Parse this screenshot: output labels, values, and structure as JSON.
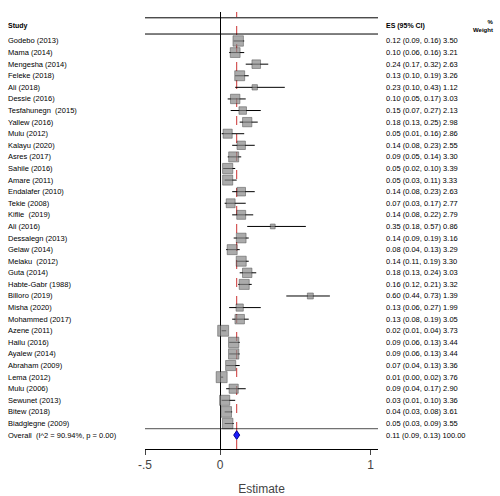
{
  "chart_data": {
    "type": "forest",
    "xlabel": "Estimate",
    "categories": [
      "Godebo (2013)",
      "Mama (2014)",
      "Mengesha (2014)",
      "Feleke (2018)",
      "Ali (2018)",
      "Dessie (2016)",
      "Tesfahunegn  (2015)",
      "Yallew (2016)",
      "Mulu (2012)",
      "Kalayu (2020)",
      "Asres (2017)",
      "Sahile (2016)",
      "Amare (2011)",
      "Endalafer (2010)",
      "Tekie (2008)",
      "Kiflie  (2019)",
      "Ali (2016)",
      "Dessalegn (2013)",
      "Gelaw (2014)",
      "Melaku  (2012)",
      "Guta (2014)",
      "Habte-Gabr (1988)",
      "Billoro (2019)",
      "Misha (2020)",
      "Mohammed (2017)",
      "Azene (2011)",
      "Hailu (2016)",
      "Ayalew (2014)",
      "Abraham (2009)",
      "Lema (2012)",
      "Mulu (2006)",
      "Sewunet (2013)",
      "Bitew (2018)",
      "Biadglegne (2009)"
    ],
    "values": [
      0.12,
      0.1,
      0.24,
      0.13,
      0.23,
      0.1,
      0.15,
      0.18,
      0.05,
      0.14,
      0.09,
      0.05,
      0.05,
      0.14,
      0.07,
      0.14,
      0.35,
      0.14,
      0.08,
      0.14,
      0.18,
      0.16,
      0.6,
      0.13,
      0.13,
      0.02,
      0.09,
      0.09,
      0.07,
      0.01,
      0.09,
      0.03,
      0.04,
      0.05
    ],
    "lower": [
      0.09,
      0.06,
      0.17,
      0.1,
      0.1,
      0.05,
      0.07,
      0.13,
      0.01,
      0.08,
      0.05,
      0.02,
      0.03,
      0.08,
      0.03,
      0.08,
      0.18,
      0.09,
      0.04,
      0.11,
      0.13,
      0.12,
      0.44,
      0.06,
      0.08,
      0.01,
      0.06,
      0.06,
      0.04,
      0.0,
      0.04,
      0.01,
      0.03,
      0.03
    ],
    "upper": [
      0.16,
      0.16,
      0.32,
      0.19,
      0.43,
      0.17,
      0.27,
      0.25,
      0.16,
      0.23,
      0.14,
      0.1,
      0.11,
      0.23,
      0.17,
      0.22,
      0.57,
      0.19,
      0.13,
      0.19,
      0.24,
      0.21,
      0.73,
      0.27,
      0.19,
      0.04,
      0.13,
      0.13,
      0.13,
      0.02,
      0.17,
      0.1,
      0.08,
      0.09
    ],
    "weights": [
      3.5,
      3.21,
      2.63,
      3.26,
      1.12,
      3.03,
      2.13,
      2.98,
      2.86,
      2.55,
      3.3,
      3.39,
      3.33,
      2.63,
      2.77,
      2.79,
      0.86,
      3.16,
      3.29,
      3.3,
      3.03,
      3.32,
      1.39,
      1.99,
      3.05,
      3.73,
      3.44,
      3.44,
      3.36,
      3.76,
      2.9,
      3.36,
      3.61,
      3.55
    ],
    "value_labels": [
      "0.12 (0.09, 0.16) 3.50",
      "0.10 (0.06, 0.16) 3.21",
      "0.24 (0.17, 0.32) 2.63",
      "0.13 (0.10, 0.19) 3.26",
      "0.23 (0.10, 0.43) 1.12",
      "0.10 (0.05, 0.17) 3.03",
      "0.15 (0.07, 0.27) 2.13",
      "0.18 (0.13, 0.25) 2.98",
      "0.05 (0.01, 0.16) 2.86",
      "0.14 (0.08, 0.23) 2.55",
      "0.09 (0.05, 0.14) 3.30",
      "0.05 (0.02, 0.10) 3.39",
      "0.05 (0.03, 0.11) 3.33",
      "0.14 (0.08, 0.23) 2.63",
      "0.07 (0.03, 0.17) 2.77",
      "0.14 (0.08, 0.22) 2.79",
      "0.35 (0.18, 0.57) 0.86",
      "0.14 (0.09, 0.19) 3.16",
      "0.08 (0.04, 0.13) 3.29",
      "0.14 (0.11, 0.19) 3.30",
      "0.18 (0.13, 0.24) 3.03",
      "0.16 (0.12, 0.21) 3.32",
      "0.60 (0.44, 0.73) 1.39",
      "0.13 (0.06, 0.27) 1.99",
      "0.13 (0.08, 0.19) 3.05",
      "0.02 (0.01, 0.04) 3.73",
      "0.09 (0.06, 0.13) 3.44",
      "0.09 (0.06, 0.13) 3.44",
      "0.07 (0.04, 0.13) 3.36",
      "0.01 (0.00, 0.02) 3.76",
      "0.09 (0.04, 0.17) 2.90",
      "0.03 (0.01, 0.10) 3.36",
      "0.04 (0.03, 0.08) 3.61",
      "0.05 (0.03, 0.09) 3.55"
    ],
    "color": "#888888",
    "overall": {
      "label": "Overall  (I^2 = 90.94%, p = 0.00)",
      "value": 0.11,
      "lower": 0.09,
      "upper": 0.13,
      "weight": 100.0,
      "value_label": "0.11 (0.09, 0.13) 100.00",
      "color": "#1a1aff"
    },
    "reference_line": {
      "value": 0.11,
      "color": "#cc3333",
      "line_style": "dashed"
    },
    "column_headers": [
      "Study",
      "ES (95% CI)",
      "%\nWeight"
    ],
    "xlim": [
      -0.5,
      1.05
    ],
    "xticks": [
      {
        "value": -0.5,
        "label": "-.5"
      },
      0,
      1
    ],
    "grid": false,
    "legend": false
  }
}
